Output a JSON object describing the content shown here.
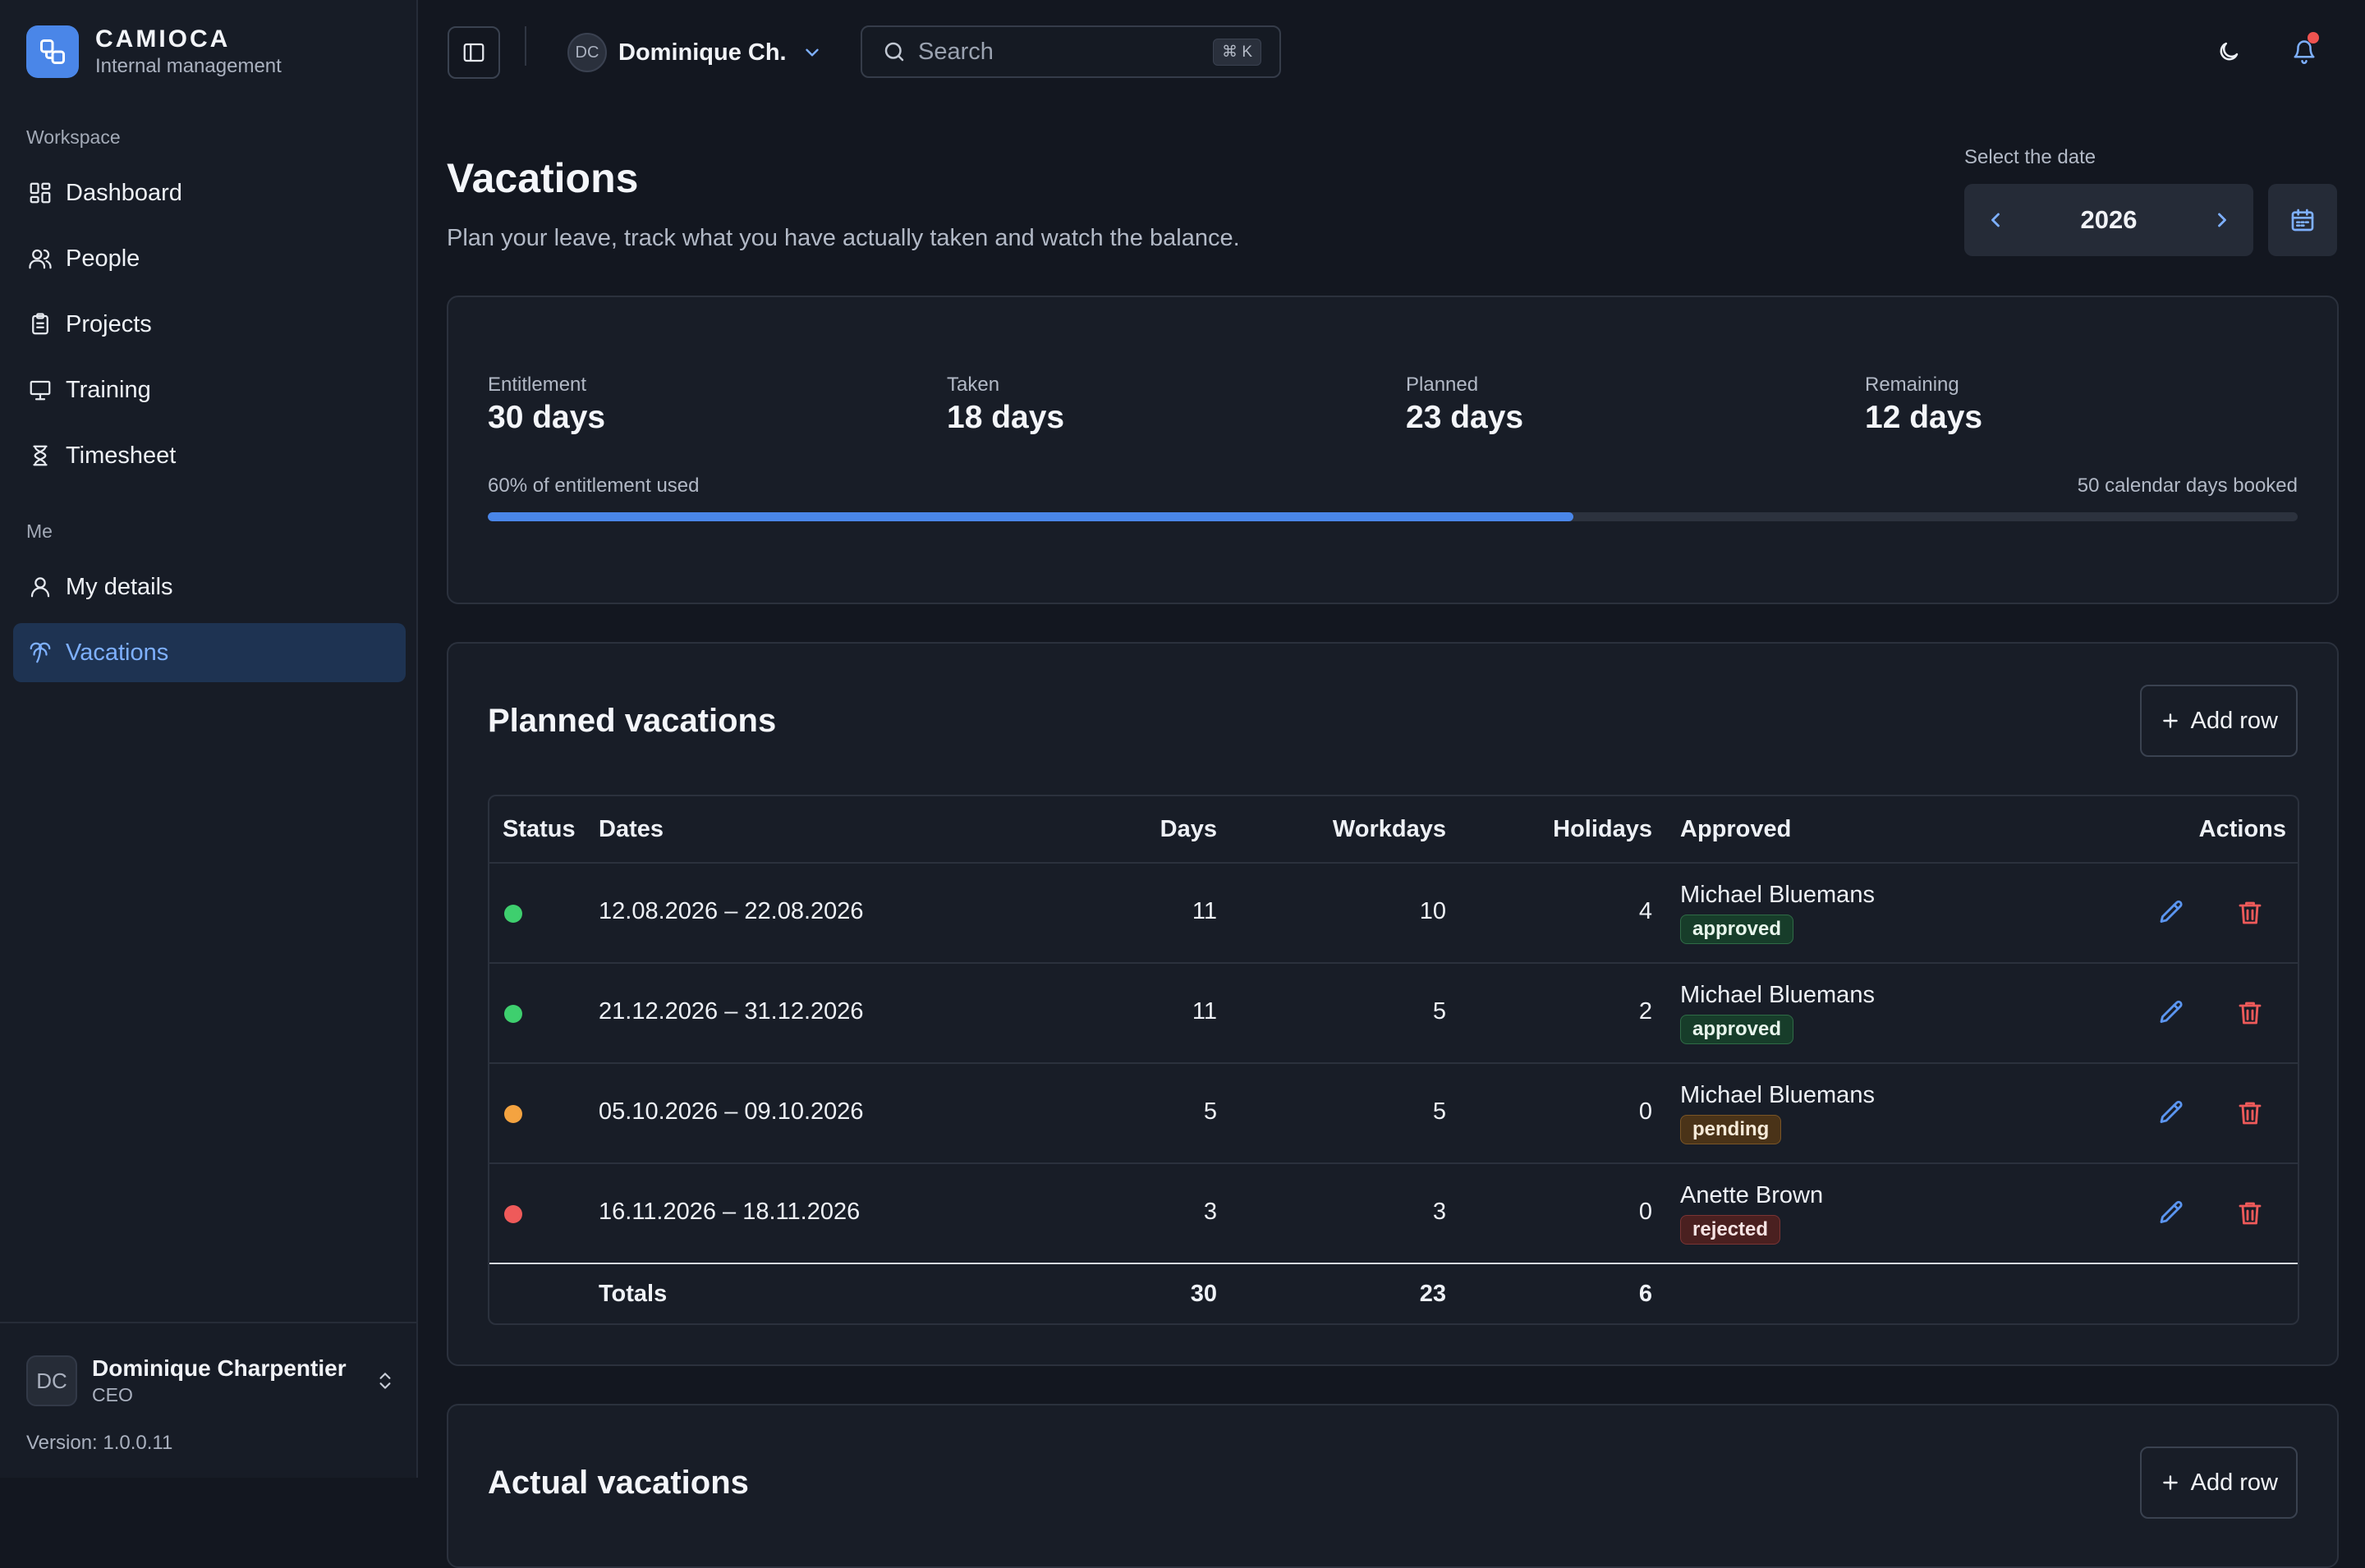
{
  "colors": {
    "accent": "#4a86e8",
    "approved": "#3ecf6e",
    "pending": "#f4a340",
    "rejected": "#ef5a5a",
    "delete": "#ef5a5a"
  },
  "brand": {
    "name": "CAMIOCA",
    "subtitle": "Internal management"
  },
  "sidebar": {
    "workspace_label": "Workspace",
    "workspace_items": [
      {
        "label": "Dashboard",
        "icon": "dashboard-icon"
      },
      {
        "label": "People",
        "icon": "users-icon"
      },
      {
        "label": "Projects",
        "icon": "clipboard-icon"
      },
      {
        "label": "Training",
        "icon": "presentation-icon"
      },
      {
        "label": "Timesheet",
        "icon": "hourglass-icon"
      }
    ],
    "me_label": "Me",
    "me_items": [
      {
        "label": "My details",
        "icon": "user-icon"
      },
      {
        "label": "Vacations",
        "icon": "palm-tree-icon",
        "active": true
      }
    ],
    "user": {
      "initials": "DC",
      "name": "Dominique Charpentier",
      "role": "CEO"
    },
    "version": "Version: 1.0.0.11"
  },
  "topbar": {
    "user_initials": "DC",
    "user_short": "Dominique Ch.",
    "search_placeholder": "Search",
    "search_shortcut": "⌘ K",
    "notifications_unread": true
  },
  "page": {
    "title": "Vacations",
    "subtitle": "Plan your leave, track what you have actually taken and watch the balance.",
    "date_label": "Select the date",
    "year": "2026"
  },
  "summary": {
    "stats": [
      {
        "label": "Entitlement",
        "value": "30 days"
      },
      {
        "label": "Taken",
        "value": "18 days"
      },
      {
        "label": "Planned",
        "value": "23 days"
      },
      {
        "label": "Remaining",
        "value": "12 days"
      }
    ],
    "used_text": "60% of entitlement used",
    "used_fraction": 0.6,
    "booked_text": "50 calendar days booked"
  },
  "planned": {
    "title": "Planned vacations",
    "add_label": "Add row",
    "headers": {
      "status": "Status",
      "dates": "Dates",
      "days": "Days",
      "workdays": "Workdays",
      "holidays": "Holidays",
      "approved": "Approved",
      "actions": "Actions"
    },
    "rows": [
      {
        "status": "approved",
        "dates": "12.08.2026 – 22.08.2026",
        "days": "11",
        "workdays": "10",
        "holidays": "4",
        "approver": "Michael Bluemans",
        "badge": "approved"
      },
      {
        "status": "approved",
        "dates": "21.12.2026 – 31.12.2026",
        "days": "11",
        "workdays": "5",
        "holidays": "2",
        "approver": "Michael Bluemans",
        "badge": "approved"
      },
      {
        "status": "pending",
        "dates": "05.10.2026 – 09.10.2026",
        "days": "5",
        "workdays": "5",
        "holidays": "0",
        "approver": "Michael Bluemans",
        "badge": "pending"
      },
      {
        "status": "rejected",
        "dates": "16.11.2026 – 18.11.2026",
        "days": "3",
        "workdays": "3",
        "holidays": "0",
        "approver": "Anette Brown",
        "badge": "rejected"
      }
    ],
    "totals": {
      "label": "Totals",
      "days": "30",
      "workdays": "23",
      "holidays": "6"
    }
  },
  "actual": {
    "title": "Actual vacations",
    "add_label": "Add row"
  }
}
